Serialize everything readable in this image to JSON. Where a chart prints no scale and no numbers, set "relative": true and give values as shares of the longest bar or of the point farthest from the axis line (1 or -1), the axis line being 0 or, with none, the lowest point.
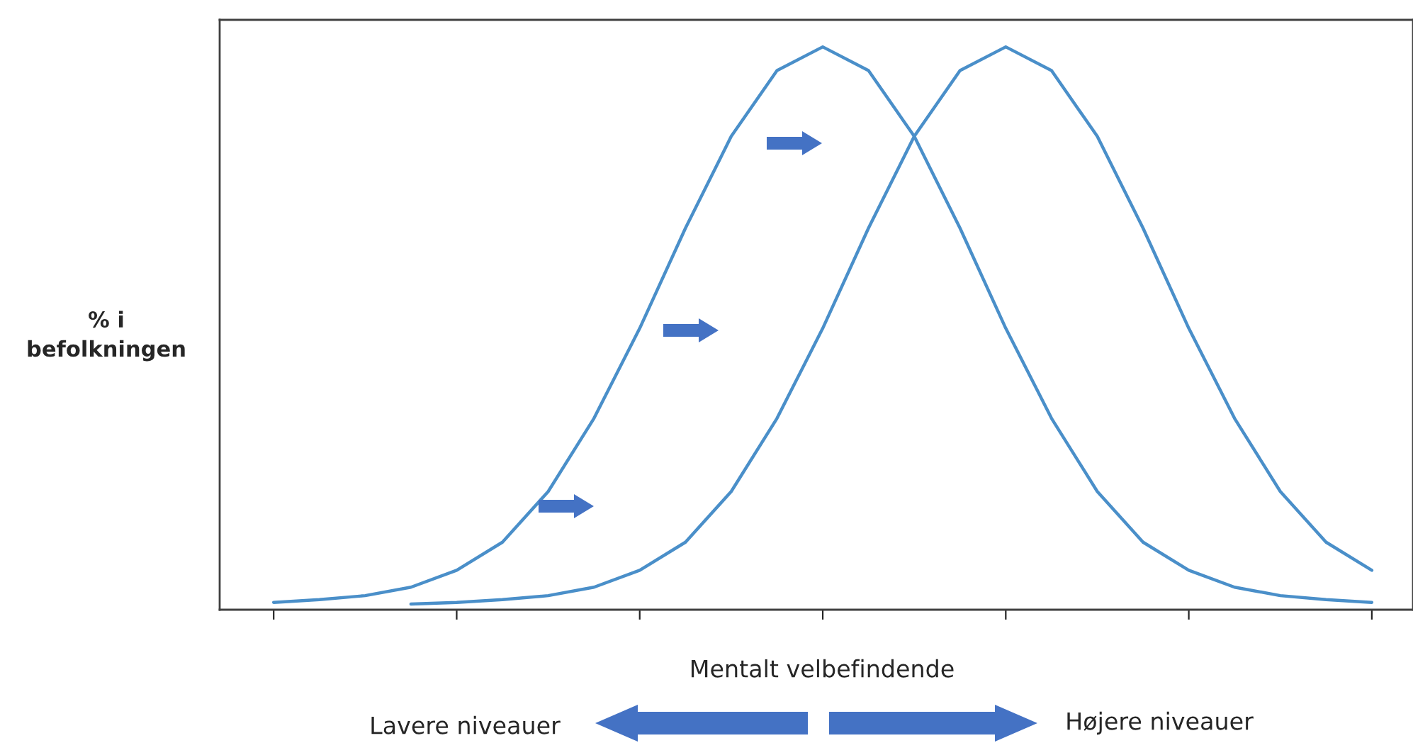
{
  "chart_data": {
    "type": "line",
    "relative": true,
    "categories": [
      null,
      null,
      null,
      null,
      null,
      null,
      null,
      null,
      null,
      null,
      null,
      null,
      null,
      null,
      null,
      null,
      null,
      null,
      null,
      null,
      null,
      null,
      null,
      null,
      null
    ],
    "series": [
      {
        "color": "#4a8fc9",
        "values": [
          0.013,
          0.018,
          0.025,
          0.04,
          0.07,
          0.12,
          0.21,
          0.34,
          0.5,
          0.678,
          0.841,
          0.958,
          1,
          0.958,
          0.841,
          0.678,
          0.5,
          0.34,
          0.21,
          0.12,
          0.07,
          0.04,
          0.025,
          0.018,
          0.013
        ]
      },
      {
        "color": "#4a8fc9",
        "values": [
          null,
          null,
          null,
          0.01,
          0.013,
          0.018,
          0.025,
          0.04,
          0.07,
          0.12,
          0.21,
          0.34,
          0.5,
          0.678,
          0.841,
          0.958,
          1,
          0.958,
          0.841,
          0.678,
          0.5,
          0.34,
          0.21,
          0.12,
          0.07
        ]
      }
    ],
    "xlabel": "Mentalt velbefindende",
    "ylabel": "% i\nbefolkningen",
    "annotations": [
      "Lavere niveauer",
      "Højere niveauer"
    ],
    "tick_labels": false,
    "grid": false,
    "legend": false,
    "marker": "none",
    "line_style": "solid"
  }
}
